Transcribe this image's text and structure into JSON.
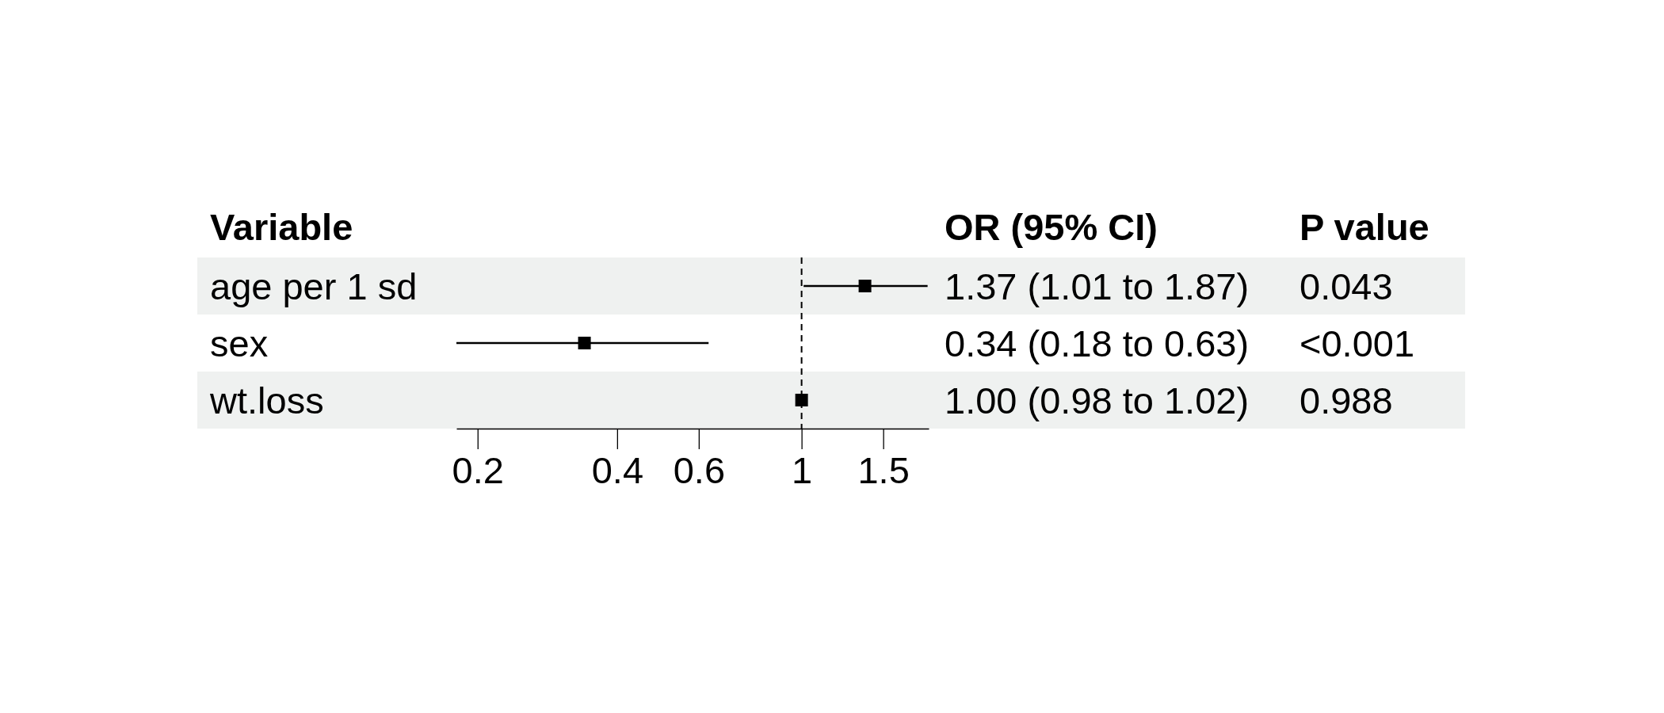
{
  "chart_data": {
    "type": "scatter",
    "orientation": "horizontal",
    "ylabel": "Variable",
    "categories": [
      "age per 1 sd",
      "sex",
      "wt.loss"
    ],
    "values": [
      1.37,
      0.34,
      1.0
    ],
    "errors": [
      [
        1.01,
        1.87
      ],
      [
        0.18,
        0.63
      ],
      [
        0.98,
        1.02
      ]
    ],
    "value_labels": [
      "1.37 (1.01 to 1.87)",
      "0.34 (0.18 to 0.63)",
      "1.00 (0.98 to 1.02)"
    ],
    "annotations": [
      "OR (95% CI)",
      "P value",
      "0.043",
      "<0.001",
      "0.988"
    ],
    "color": "#000000",
    "marker": "square",
    "log": "x",
    "xlim": [
      0.18,
      1.88
    ],
    "xticks": [
      0.2,
      0.4,
      0.6,
      1,
      1.5
    ],
    "ref_lines": [
      {
        "axis": "x",
        "value": 1,
        "line_style": "dashed",
        "color": "#000000"
      }
    ],
    "grid": false
  }
}
